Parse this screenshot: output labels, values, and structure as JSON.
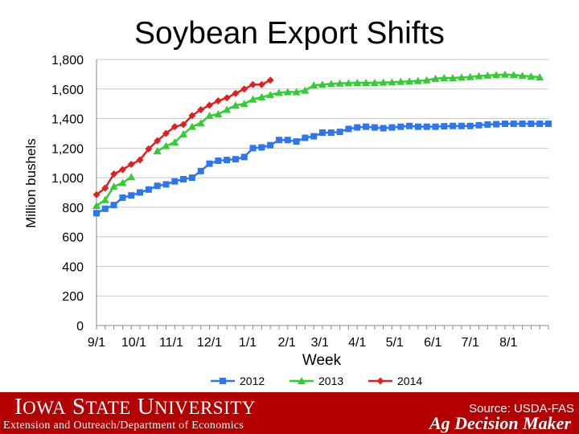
{
  "title": "Soybean Export Shifts",
  "chart_data": {
    "type": "line",
    "xlabel": "Week",
    "ylabel": "Million bushels",
    "ylim": [
      0,
      1800
    ],
    "yticks": [
      0,
      200,
      400,
      600,
      800,
      1000,
      1200,
      1400,
      1600,
      1800
    ],
    "ytick_labels": [
      "0",
      "200",
      "400",
      "600",
      "800",
      "1,000",
      "1,200",
      "1,400",
      "1,600",
      "1,800"
    ],
    "xlim": [
      0,
      52
    ],
    "xticks": [
      0,
      4.3,
      8.6,
      13,
      17.4,
      21.9,
      25.7,
      30,
      34.3,
      38.7,
      43,
      47.4
    ],
    "xtick_labels": [
      "9/1",
      "10/1",
      "11/1",
      "12/1",
      "1/1",
      "2/1",
      "3/1",
      "4/1",
      "5/1",
      "6/1",
      "7/1",
      "8/1"
    ],
    "grid": true,
    "legend": "bottom",
    "series": [
      {
        "name": "2012",
        "color": "#2e75f0",
        "marker": "square",
        "values": [
          760,
          790,
          815,
          865,
          880,
          900,
          920,
          945,
          955,
          975,
          990,
          1000,
          1045,
          1095,
          1115,
          1120,
          1125,
          1140,
          1200,
          1205,
          1220,
          1255,
          1255,
          1245,
          1270,
          1280,
          1305,
          1305,
          1310,
          1330,
          1340,
          1345,
          1340,
          1335,
          1340,
          1345,
          1350,
          1345,
          1345,
          1345,
          1348,
          1350,
          1350,
          1350,
          1355,
          1360,
          1362,
          1365,
          1365,
          1365,
          1365,
          1365,
          1365
        ]
      },
      {
        "name": "2013",
        "color": "#33cc33",
        "marker": "triangle",
        "values": [
          810,
          850,
          940,
          965,
          1005,
          null,
          null,
          1180,
          1215,
          1240,
          1295,
          1345,
          1370,
          1420,
          1430,
          1460,
          1490,
          1500,
          1530,
          1545,
          1560,
          1575,
          1580,
          1580,
          1590,
          1625,
          1630,
          1635,
          1638,
          1640,
          1642,
          1642,
          1642,
          1644,
          1646,
          1650,
          1652,
          1655,
          1660,
          1670,
          1675,
          1675,
          1678,
          1682,
          1688,
          1692,
          1695,
          1698,
          1695,
          1690,
          1685,
          1680
        ]
      },
      {
        "name": "2014",
        "color": "#e02020",
        "marker": "diamond",
        "values": [
          885,
          930,
          1025,
          1055,
          1090,
          1120,
          1195,
          1250,
          1300,
          1345,
          1360,
          1420,
          1460,
          1490,
          1520,
          1540,
          1570,
          1600,
          1630,
          1630,
          1660
        ]
      }
    ]
  },
  "footer": {
    "source": "Source: USDA-FAS",
    "logo": "Iowa State University",
    "subtitle": "Extension and Outreach/Department of Economics",
    "brand": "Ag Decision Maker"
  }
}
